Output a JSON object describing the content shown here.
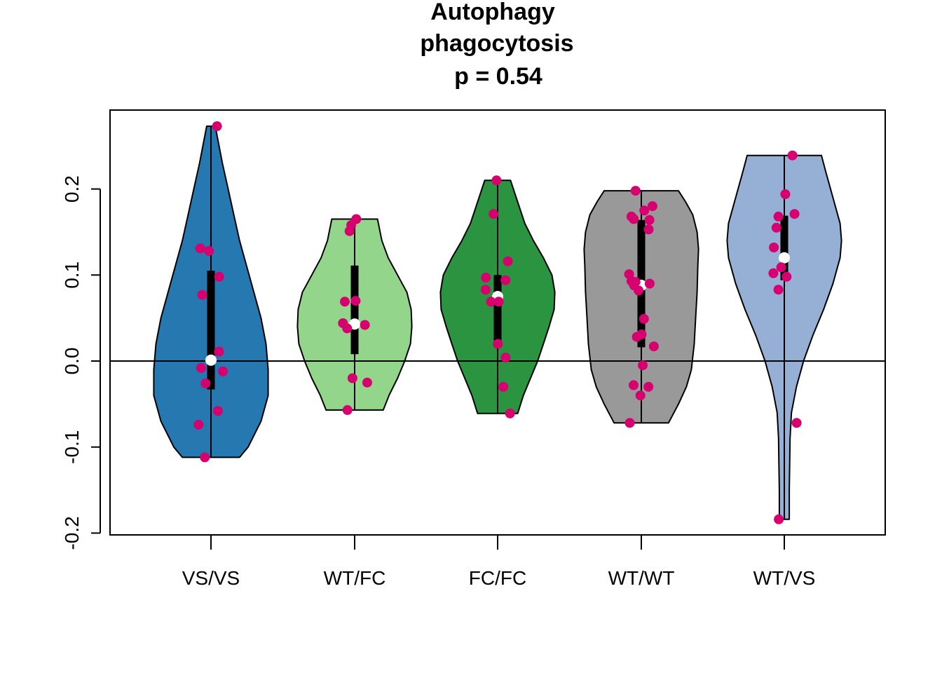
{
  "chart_data": {
    "type": "violin",
    "title": [
      "Autophagy",
      "phagocytosis",
      "p = 0.54"
    ],
    "xlabel": "",
    "ylabel": "",
    "ylim": [
      -0.2,
      0.3
    ],
    "yticks": [
      "-0.2",
      "-0.1",
      "0.0",
      "0.1",
      "0.2"
    ],
    "reference_line_y": 0.0,
    "grid": false,
    "legend": "none",
    "point_color": "#D6006E",
    "median_color": "#FFFFFF",
    "box_color": "#000000",
    "groups": [
      {
        "label": "VS/VS",
        "color": "#2578B0",
        "min": -0.112,
        "max": 0.273,
        "q1": -0.033,
        "q3": 0.105,
        "median": 0.001,
        "density": [
          [
            -0.112,
            0.4
          ],
          [
            -0.1,
            0.52
          ],
          [
            -0.07,
            0.7
          ],
          [
            -0.04,
            0.8
          ],
          [
            -0.01,
            0.8
          ],
          [
            0.02,
            0.77
          ],
          [
            0.05,
            0.7
          ],
          [
            0.08,
            0.6
          ],
          [
            0.11,
            0.5
          ],
          [
            0.14,
            0.4
          ],
          [
            0.17,
            0.32
          ],
          [
            0.2,
            0.24
          ],
          [
            0.23,
            0.16
          ],
          [
            0.26,
            0.09
          ],
          [
            0.273,
            0.06
          ]
        ],
        "points": [
          0.273,
          0.131,
          0.128,
          0.098,
          0.077,
          0.011,
          -0.008,
          -0.012,
          -0.026,
          -0.058,
          -0.074,
          -0.112
        ]
      },
      {
        "label": "WT/FC",
        "color": "#93D58B",
        "min": -0.057,
        "max": 0.165,
        "q1": 0.008,
        "q3": 0.111,
        "median": 0.043,
        "density": [
          [
            -0.057,
            0.4
          ],
          [
            -0.04,
            0.48
          ],
          [
            -0.02,
            0.6
          ],
          [
            0.0,
            0.7
          ],
          [
            0.02,
            0.78
          ],
          [
            0.04,
            0.8
          ],
          [
            0.06,
            0.79
          ],
          [
            0.08,
            0.73
          ],
          [
            0.1,
            0.6
          ],
          [
            0.12,
            0.47
          ],
          [
            0.14,
            0.38
          ],
          [
            0.165,
            0.32
          ]
        ],
        "points": [
          0.165,
          0.158,
          0.151,
          0.07,
          0.069,
          0.044,
          0.042,
          0.038,
          -0.02,
          -0.025,
          -0.057
        ]
      },
      {
        "label": "FC/FC",
        "color": "#2A9441",
        "min": -0.061,
        "max": 0.21,
        "q1": 0.016,
        "q3": 0.1,
        "median": 0.075,
        "density": [
          [
            -0.061,
            0.28
          ],
          [
            -0.04,
            0.36
          ],
          [
            -0.02,
            0.46
          ],
          [
            0.0,
            0.56
          ],
          [
            0.02,
            0.64
          ],
          [
            0.04,
            0.72
          ],
          [
            0.06,
            0.79
          ],
          [
            0.08,
            0.8
          ],
          [
            0.1,
            0.76
          ],
          [
            0.12,
            0.64
          ],
          [
            0.14,
            0.5
          ],
          [
            0.16,
            0.38
          ],
          [
            0.18,
            0.3
          ],
          [
            0.21,
            0.18
          ]
        ],
        "points": [
          0.21,
          0.171,
          0.116,
          0.097,
          0.094,
          0.083,
          0.069,
          0.069,
          0.02,
          0.004,
          -0.03,
          -0.061
        ]
      },
      {
        "label": "WT/WT",
        "color": "#999999",
        "min": -0.072,
        "max": 0.198,
        "q1": 0.016,
        "q3": 0.164,
        "median": 0.088,
        "density": [
          [
            -0.072,
            0.38
          ],
          [
            -0.05,
            0.52
          ],
          [
            -0.03,
            0.63
          ],
          [
            -0.01,
            0.7
          ],
          [
            0.02,
            0.74
          ],
          [
            0.05,
            0.76
          ],
          [
            0.08,
            0.78
          ],
          [
            0.11,
            0.79
          ],
          [
            0.13,
            0.8
          ],
          [
            0.15,
            0.78
          ],
          [
            0.17,
            0.72
          ],
          [
            0.185,
            0.62
          ],
          [
            0.198,
            0.52
          ]
        ],
        "points": [
          0.198,
          0.18,
          0.175,
          0.168,
          0.165,
          0.164,
          0.153,
          0.101,
          0.093,
          0.092,
          0.09,
          0.088,
          0.082,
          0.049,
          0.031,
          0.028,
          0.017,
          -0.005,
          -0.028,
          -0.03,
          -0.04,
          -0.072
        ]
      },
      {
        "label": "WT/VS",
        "color": "#95AFD5",
        "min": -0.184,
        "max": 0.239,
        "q1": 0.094,
        "q3": 0.169,
        "median": 0.12,
        "density": [
          [
            -0.184,
            0.07
          ],
          [
            -0.15,
            0.07
          ],
          [
            -0.12,
            0.075
          ],
          [
            -0.09,
            0.08
          ],
          [
            -0.06,
            0.1
          ],
          [
            -0.03,
            0.17
          ],
          [
            0.0,
            0.27
          ],
          [
            0.03,
            0.4
          ],
          [
            0.06,
            0.55
          ],
          [
            0.09,
            0.68
          ],
          [
            0.12,
            0.78
          ],
          [
            0.14,
            0.8
          ],
          [
            0.16,
            0.78
          ],
          [
            0.19,
            0.68
          ],
          [
            0.22,
            0.58
          ],
          [
            0.239,
            0.52
          ]
        ],
        "points": [
          0.239,
          0.194,
          0.171,
          0.168,
          0.155,
          0.132,
          0.109,
          0.102,
          0.098,
          0.083,
          -0.072,
          -0.184
        ]
      }
    ]
  }
}
